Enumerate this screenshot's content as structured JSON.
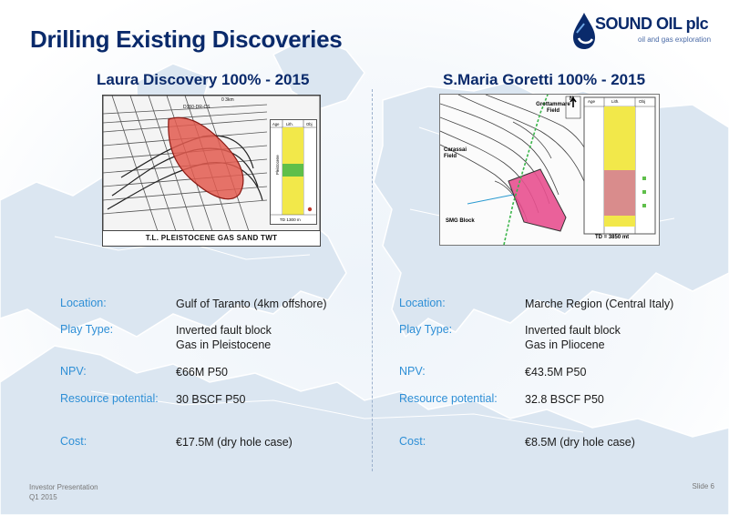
{
  "header": {
    "title": "Drilling Existing Discoveries",
    "logo_name": "SOUND OIL plc",
    "logo_tagline": "oil and gas exploration"
  },
  "colors": {
    "title": "#0a2a6b",
    "label": "#2e8fd6",
    "map_land": "#dbe6f1",
    "discovery_red": "#e25a4f",
    "discovery_pink": "#e8508f"
  },
  "left": {
    "title": "Laura Discovery 100% - 2015",
    "map": {
      "line_label": "D150-DR-CS",
      "scale_label": "0        3km",
      "caption": "T.L. PLEISTOCENE GAS SAND TWT",
      "log_headers": [
        "Age",
        "Lith.",
        "Obj"
      ],
      "log_age": "Pleistocene",
      "td": "TD 1300 m"
    },
    "details": [
      {
        "label": "Location:",
        "lines": [
          "Gulf of Taranto (4km offshore)"
        ]
      },
      {
        "label": "Play Type:",
        "lines": [
          "Inverted fault block",
          "Gas in Pleistocene"
        ]
      },
      {
        "label": "NPV:",
        "lines": [
          "€66M P50"
        ]
      },
      {
        "label": "Resource potential:",
        "lines": [
          "30 BSCF P50"
        ]
      },
      {
        "label": "Cost:",
        "lines": [
          "€17.5M (dry hole case)"
        ]
      }
    ]
  },
  "right": {
    "title": "S.Maria Goretti 100% - 2015",
    "map": {
      "north": "N",
      "field1": "Grottammare Field",
      "field2": "Carassai Field",
      "block": "SMG Block",
      "log_headers": [
        "Age",
        "Lith.",
        "Obj"
      ],
      "td": "TD = 3850 mt"
    },
    "details": [
      {
        "label": "Location:",
        "lines": [
          "Marche Region (Central Italy)"
        ]
      },
      {
        "label": "Play Type:",
        "lines": [
          "Inverted fault block",
          "Gas in Pliocene"
        ]
      },
      {
        "label": "NPV:",
        "lines": [
          "€43.5M P50"
        ]
      },
      {
        "label": "Resource potential:",
        "lines": [
          "32.8 BSCF P50"
        ]
      },
      {
        "label": "Cost:",
        "lines": [
          "€8.5M (dry hole case)"
        ]
      }
    ]
  },
  "footer": {
    "line1": "Investor Presentation",
    "line2": "Q1 2015",
    "slide": "Slide 6"
  }
}
